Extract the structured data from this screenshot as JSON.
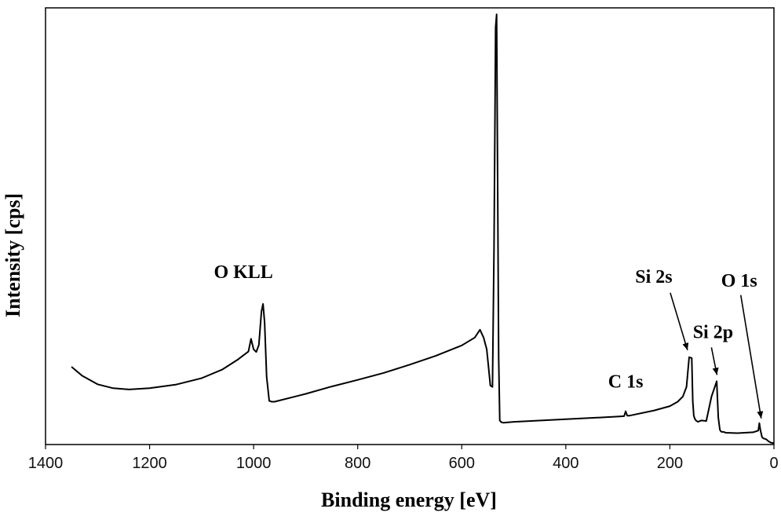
{
  "chart_data": {
    "type": "line",
    "title": "",
    "xlabel": "Binding energy [eV]",
    "ylabel": "Intensity [cps]",
    "xlim": [
      1400,
      0
    ],
    "x_reversed": true,
    "ylim": [
      0,
      100
    ],
    "y_tick_labels": false,
    "grid": false,
    "legend": "none",
    "x_ticks": [
      "1400",
      "1200",
      "1000",
      "800",
      "600",
      "400",
      "200",
      "0"
    ],
    "line_color": "#000000",
    "series": [
      {
        "x": [
          1350,
          1330,
          1300,
          1270,
          1240,
          1200,
          1150,
          1100,
          1060,
          1030,
          1010,
          1005,
          1000,
          995,
          990,
          985,
          982,
          979,
          975,
          970,
          965,
          960,
          900,
          850,
          800,
          750,
          700,
          650,
          600,
          575,
          565,
          558,
          552,
          548,
          545,
          541,
          538,
          535,
          533,
          531,
          529,
          527,
          524,
          520,
          500,
          400,
          300,
          288,
          285,
          282,
          278,
          270,
          230,
          200,
          185,
          175,
          168,
          163,
          158,
          156,
          154,
          152,
          150,
          146,
          140,
          130,
          120,
          110,
          107,
          104,
          102,
          100,
          97,
          92,
          70,
          40,
          30,
          28,
          26,
          23,
          20,
          15,
          10,
          5,
          0
        ],
        "y": [
          17.8,
          15.8,
          13.8,
          12.9,
          12.6,
          12.9,
          13.7,
          15.2,
          17.2,
          19.5,
          21.3,
          24.2,
          21.8,
          21.2,
          22.8,
          30.5,
          32.2,
          28.0,
          15.5,
          10.0,
          9.8,
          9.8,
          11.6,
          13.3,
          14.8,
          16.4,
          18.3,
          20.3,
          22.7,
          24.5,
          26.3,
          24.5,
          21.8,
          17.0,
          13.5,
          13.2,
          45.0,
          95.5,
          98.5,
          60.0,
          20.0,
          5.5,
          5.1,
          5.0,
          5.2,
          5.8,
          6.4,
          6.5,
          7.6,
          6.6,
          6.6,
          6.8,
          7.8,
          8.8,
          9.8,
          11.0,
          13.2,
          20.0,
          19.8,
          9.9,
          6.6,
          5.9,
          5.5,
          5.2,
          5.5,
          5.4,
          11.0,
          14.5,
          6.2,
          3.4,
          3.0,
          2.9,
          2.9,
          2.7,
          2.6,
          2.8,
          3.2,
          4.9,
          3.3,
          1.7,
          1.4,
          1.2,
          0.7,
          0.4,
          0.3
        ]
      }
    ],
    "annotations": [
      {
        "label": "O 1s",
        "x": 531,
        "y": 98.5,
        "arrow": false
      },
      {
        "label": "O KLL",
        "x": 1000,
        "y": 32,
        "arrow": false
      },
      {
        "label": "C 1s",
        "x": 285,
        "y": 7.6,
        "arrow": false
      },
      {
        "label": "Si 2s",
        "x": 154,
        "y": 20,
        "arrow": true
      },
      {
        "label": "Si 2p",
        "x": 102,
        "y": 14.5,
        "arrow": true
      },
      {
        "label": "O 1s",
        "x": 23,
        "y": 4.9,
        "arrow": true
      }
    ]
  }
}
